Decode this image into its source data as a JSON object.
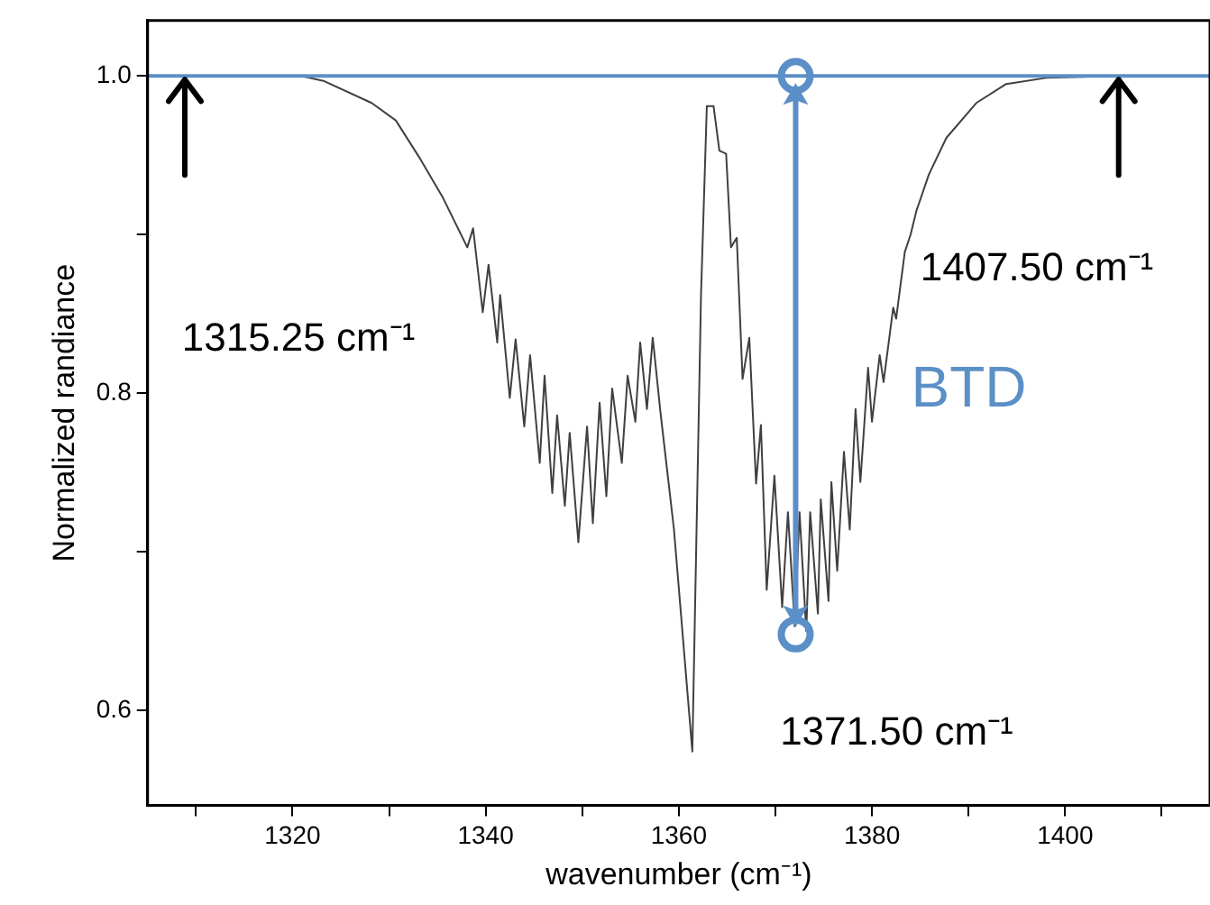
{
  "chart_data": {
    "type": "line",
    "xlabel": "wavenumber (cm⁻¹)",
    "ylabel": "Normalized randiance",
    "xlim": [
      1305,
      1415
    ],
    "ylim": [
      0.54,
      1.035
    ],
    "xticks": [
      {
        "value": 1310,
        "label": null
      },
      1320,
      {
        "value": 1330,
        "label": null
      },
      1340,
      {
        "value": 1350,
        "label": null
      },
      1360,
      {
        "value": 1370,
        "label": null
      },
      1380,
      {
        "value": 1390,
        "label": null
      },
      1400,
      {
        "value": 1410,
        "label": null
      }
    ],
    "yticks": [
      0.6,
      {
        "value": 0.7,
        "label": null
      },
      0.8,
      {
        "value": 0.9,
        "label": null
      },
      {
        "value": 1.0,
        "label": "1.0"
      }
    ],
    "grid": false,
    "legend": false,
    "marker": "none",
    "line_style": "solid",
    "series": [
      {
        "color": "#404040",
        "x": [
          1305,
          1320.9,
          1323.2,
          1328.2,
          1330.7,
          1333.1,
          1335.6,
          1338.1,
          1338.7,
          1339.7,
          1340.3,
          1341.2,
          1341.5,
          1342.5,
          1343.1,
          1344.0,
          1344.6,
          1345.6,
          1346.1,
          1346.9,
          1347.4,
          1348.2,
          1348.7,
          1349.6,
          1350.5,
          1351.1,
          1351.8,
          1352.5,
          1353.1,
          1354.1,
          1354.7,
          1355.5,
          1356.0,
          1356.7,
          1357.3,
          1358.1,
          1359.5,
          1361.4,
          1362.3,
          1362.9,
          1363.6,
          1364.2,
          1364.9,
          1365.4,
          1366.0,
          1366.6,
          1367.3,
          1368.0,
          1368.5,
          1369.1,
          1369.9,
          1370.7,
          1371.3,
          1372.0,
          1372.5,
          1373.2,
          1373.6,
          1374.4,
          1374.7,
          1375.5,
          1375.8,
          1376.4,
          1377.1,
          1377.7,
          1378.3,
          1378.8,
          1379.6,
          1380.0,
          1380.8,
          1381.2,
          1382.2,
          1382.5,
          1383.4,
          1384.0,
          1384.6,
          1385.9,
          1387.7,
          1390.8,
          1393.9,
          1398.2,
          1405,
          1415
        ],
        "values": [
          1.0,
          1.0,
          0.997,
          0.983,
          0.972,
          0.949,
          0.923,
          0.892,
          0.904,
          0.851,
          0.881,
          0.832,
          0.862,
          0.797,
          0.834,
          0.779,
          0.824,
          0.756,
          0.811,
          0.737,
          0.786,
          0.729,
          0.775,
          0.706,
          0.779,
          0.718,
          0.794,
          0.735,
          0.803,
          0.756,
          0.811,
          0.782,
          0.832,
          0.79,
          0.835,
          0.788,
          0.714,
          0.574,
          0.862,
          0.981,
          0.981,
          0.953,
          0.951,
          0.892,
          0.898,
          0.809,
          0.835,
          0.743,
          0.78,
          0.676,
          0.748,
          0.665,
          0.725,
          0.653,
          0.725,
          0.65,
          0.725,
          0.661,
          0.733,
          0.669,
          0.744,
          0.688,
          0.763,
          0.714,
          0.79,
          0.744,
          0.816,
          0.782,
          0.824,
          0.807,
          0.854,
          0.847,
          0.889,
          0.9,
          0.915,
          0.938,
          0.961,
          0.983,
          0.995,
          0.999,
          1.0,
          1.0
        ]
      }
    ],
    "ref_lines": [
      {
        "axis": "y",
        "value": 1.0,
        "color": "#5b8fc7"
      }
    ],
    "annotations": [
      "1315.25 cm⁻¹",
      "1407.50 cm⁻¹",
      "1371.50 cm⁻¹",
      "BTD"
    ]
  }
}
